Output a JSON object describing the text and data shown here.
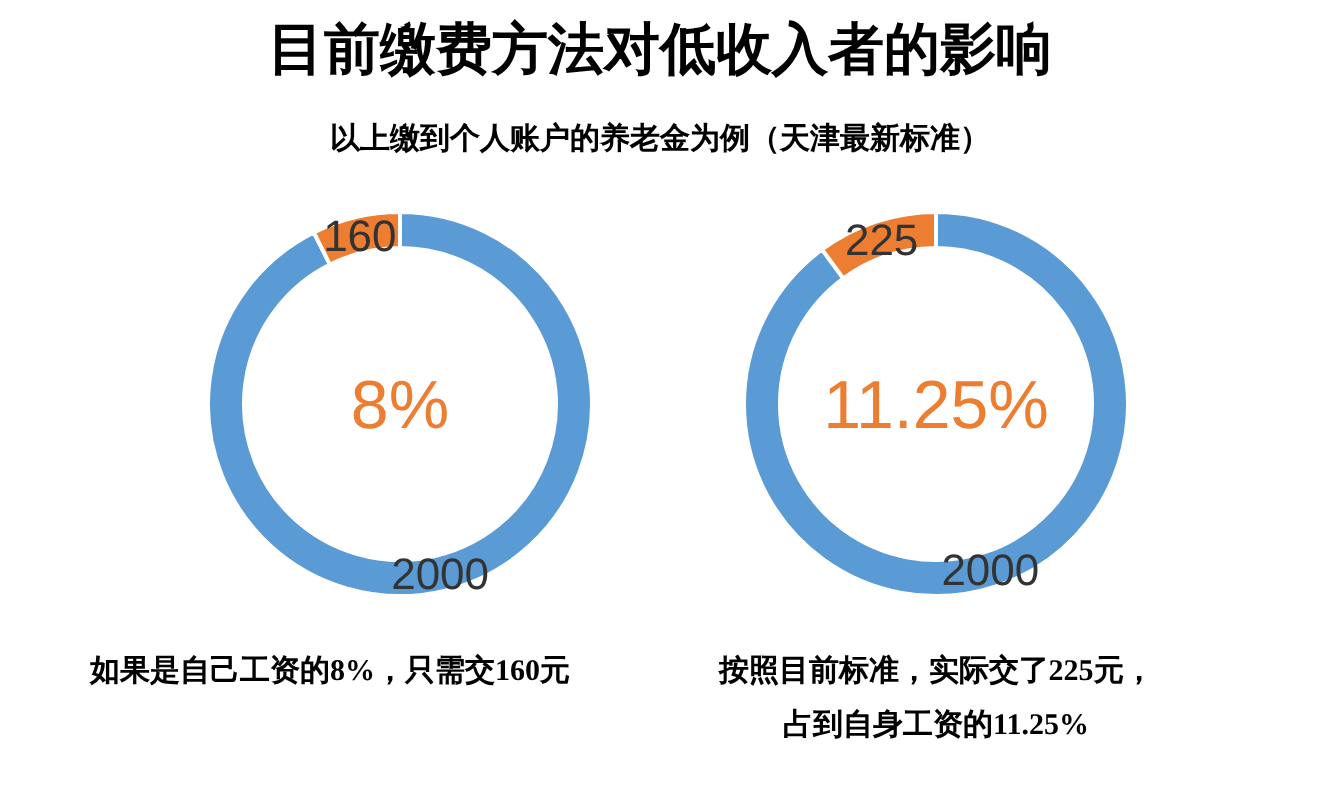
{
  "chart_data": [
    {
      "type": "donut",
      "title": "目前缴费方法对低收入者的影响",
      "subtitle": "以上缴到个人账户的养老金为例（天津最新标准）",
      "categories": [
        null,
        null
      ],
      "values": [
        2000,
        160
      ],
      "colors": [
        "#5b9bd5",
        "#ed7d31"
      ],
      "data_labels": true,
      "annotations": [
        "8%",
        "如果是自己工资的8%，只需交160元"
      ]
    },
    {
      "type": "donut",
      "categories": [
        null,
        null
      ],
      "values": [
        2000,
        225
      ],
      "colors": [
        "#5b9bd5",
        "#ed7d31"
      ],
      "data_labels": true,
      "annotations": [
        "11.25%",
        "按照目前标准，实际交了225元，",
        "占到自身工资的11.25%"
      ]
    }
  ]
}
